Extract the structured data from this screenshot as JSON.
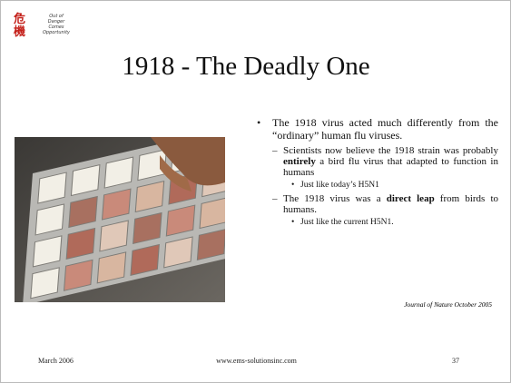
{
  "logo": {
    "characters": [
      "危",
      "機"
    ],
    "tagline": [
      "Out of",
      "Danger",
      "Comes",
      "Opportunity"
    ]
  },
  "title": "1918 - The Deadly One",
  "bullets": [
    {
      "text": [
        "The 1918 virus acted much differently from the “ordinary” human flu viruses."
      ],
      "sub": [
        {
          "text": [
            "Scientists now believe the 1918 strain  was probably ",
            "entirely",
            " a bird flu virus that adapted to function in humans"
          ],
          "sub": [
            "Just like today’s H5N1"
          ]
        },
        {
          "text": [
            "The 1918 virus was a ",
            "direct leap",
            " from birds to humans."
          ],
          "sub": [
            "Just like the current H5N1."
          ]
        }
      ]
    }
  ],
  "citation": "Journal of Nature October 2005",
  "footer": {
    "date": "March 2006",
    "website": "www.ems-solutionsinc.com",
    "page": "37"
  }
}
